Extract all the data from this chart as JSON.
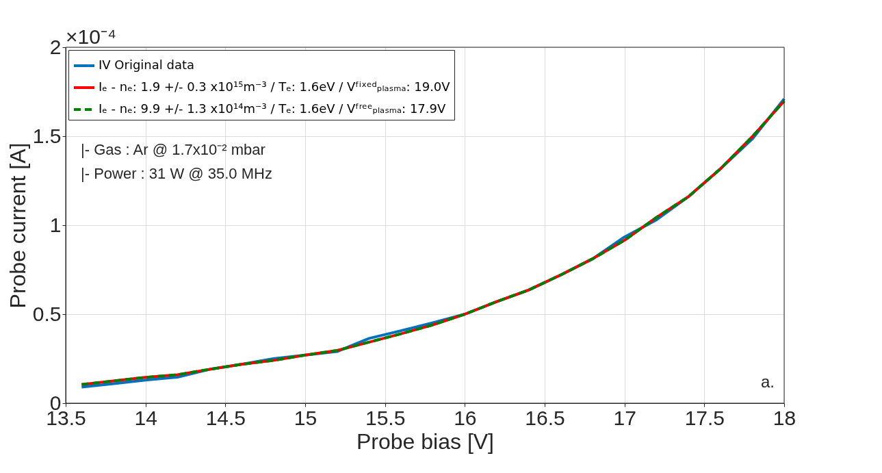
{
  "chart_data": {
    "type": "line",
    "xlabel": "Probe bias [V]",
    "ylabel": "Probe current [A]",
    "x": [
      13.6,
      13.8,
      14.0,
      14.2,
      14.4,
      14.6,
      14.8,
      15.0,
      15.2,
      15.4,
      15.6,
      15.8,
      16.0,
      16.2,
      16.4,
      16.6,
      16.8,
      17.0,
      17.2,
      17.4,
      17.6,
      17.8,
      18.0
    ],
    "series": [
      {
        "name": "IV Original data",
        "color": "#0072bd",
        "line_style": "solid",
        "values": [
          0.09,
          0.11,
          0.13,
          0.146,
          0.19,
          0.218,
          0.25,
          0.27,
          0.29,
          0.364,
          0.407,
          0.452,
          0.5,
          0.571,
          0.636,
          0.72,
          0.811,
          0.934,
          1.03,
          1.16,
          1.316,
          1.484,
          1.71
        ]
      },
      {
        "name": "Iₑ - nₑ: 1.9 +/- 0.3 x10¹⁵m⁻³ / Tₑ: 1.6eV / Vᶠⁱˣᵉᵈₚₗₐₛₘₐ: 19.0V",
        "color": "#ff0000",
        "line_style": "solid",
        "values": [
          0.105,
          0.125,
          0.145,
          0.16,
          0.19,
          0.218,
          0.24,
          0.27,
          0.296,
          0.343,
          0.39,
          0.44,
          0.5,
          0.571,
          0.636,
          0.72,
          0.811,
          0.915,
          1.044,
          1.16,
          1.316,
          1.497,
          1.697
        ]
      },
      {
        "name": "Iₑ - nₑ: 9.9 +/- 1.3 x10¹⁴m⁻³ / Tₑ: 1.6eV / Vᶠʳᵉᵉₚₗₐₛₘₐ: 17.9V",
        "color": "#008000",
        "line_style": "dashed",
        "values": [
          0.105,
          0.125,
          0.145,
          0.16,
          0.19,
          0.218,
          0.24,
          0.27,
          0.296,
          0.343,
          0.39,
          0.44,
          0.5,
          0.571,
          0.636,
          0.72,
          0.811,
          0.915,
          1.044,
          1.16,
          1.316,
          1.497,
          1.697
        ]
      }
    ],
    "xlim": [
      13.5,
      18
    ],
    "xticks": [
      13.5,
      14,
      14.5,
      15,
      15.5,
      16,
      16.5,
      17,
      17.5,
      18
    ],
    "ylim": [
      0,
      2
    ],
    "yticks": [
      0,
      0.5,
      1,
      1.5,
      2
    ],
    "grid": true,
    "legend": "top left",
    "marker": "none",
    "annotations": [
      "×10⁻⁴",
      "|- Gas      : Ar @ 1.7x10⁻² mbar",
      "|- Power : 31 W @ 35.0 MHz",
      "a."
    ]
  }
}
